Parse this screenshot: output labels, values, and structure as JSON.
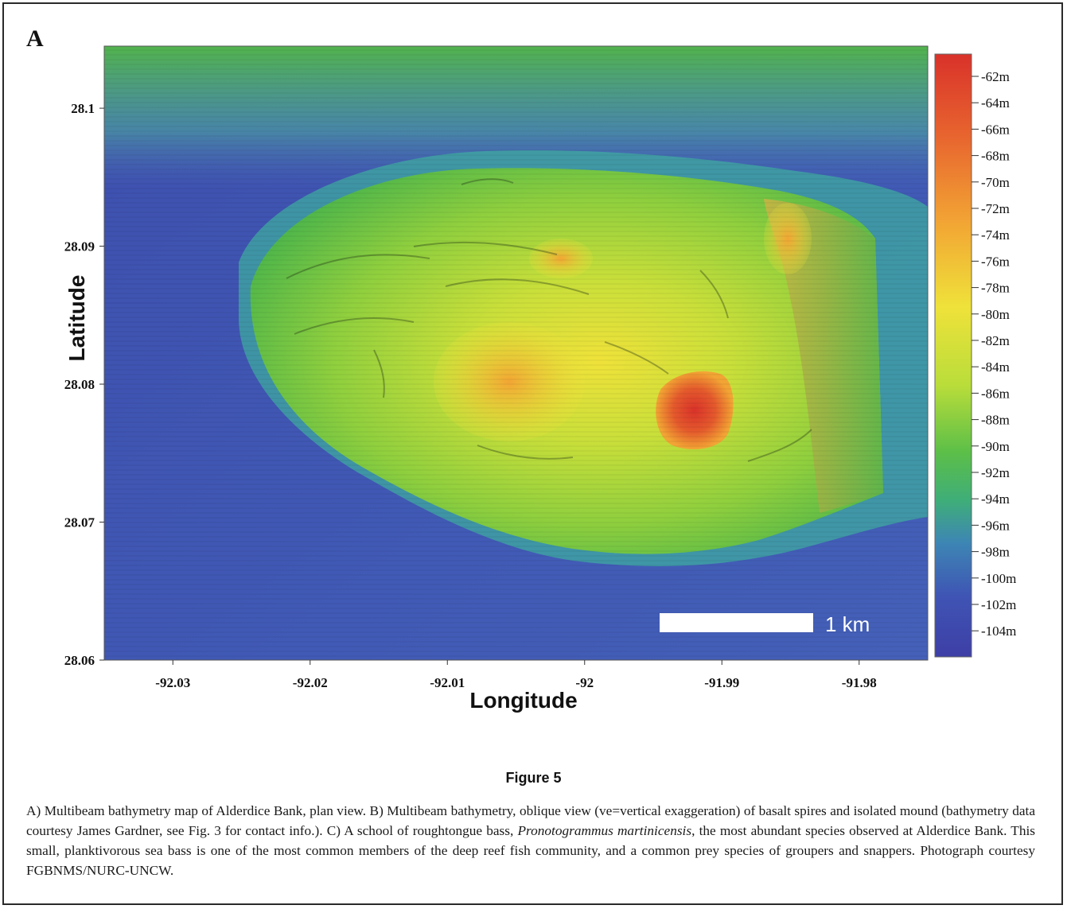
{
  "panel_label": "A",
  "chart_data": {
    "type": "heatmap",
    "xlabel": "Longitude",
    "ylabel": "Latitude",
    "x_ticks": [
      "-92.03",
      "-92.02",
      "-92.01",
      "-92",
      "-91.99",
      "-91.98"
    ],
    "y_ticks": [
      "28.1",
      "28.09",
      "28.08",
      "28.07",
      "28.06"
    ],
    "xlim": [
      -92.035,
      -91.975
    ],
    "ylim": [
      28.06,
      28.1045
    ],
    "colorbar_labels": [
      "-62m",
      "-64m",
      "-66m",
      "-68m",
      "-70m",
      "-72m",
      "-74m",
      "-76m",
      "-78m",
      "-80m",
      "-82m",
      "-84m",
      "-86m",
      "-88m",
      "-90m",
      "-92m",
      "-94m",
      "-96m",
      "-98m",
      "-100m",
      "-102m",
      "-104m"
    ],
    "colorbar_colors": [
      "#d9322a",
      "#e8662f",
      "#f2a534",
      "#efe23a",
      "#b9dd3a",
      "#5cbf48",
      "#3fae78",
      "#3d86b4",
      "#3f54b4",
      "#3e3fa6"
    ],
    "scale_bar": "1 km"
  },
  "figure_title": "Figure 5",
  "caption": {
    "part1": "A) Multibeam bathymetry map of Alderdice Bank, plan view. B) Multibeam bathymetry, oblique view (ve=vertical exaggeration) of basalt spires and isolated mound (bathymetry data courtesy James Gardner, see Fig. 3 for contact info.). C) A school of roughtongue bass, ",
    "species": "Pronotogrammus martinicensis",
    "part2": ", the most abundant species observed at Alderdice Bank. This small, planktivorous sea bass is one of the most common members of the deep reef fish community, and a common prey species of groupers and snappers. Photograph courtesy FGBNMS/NURC-UNCW."
  }
}
